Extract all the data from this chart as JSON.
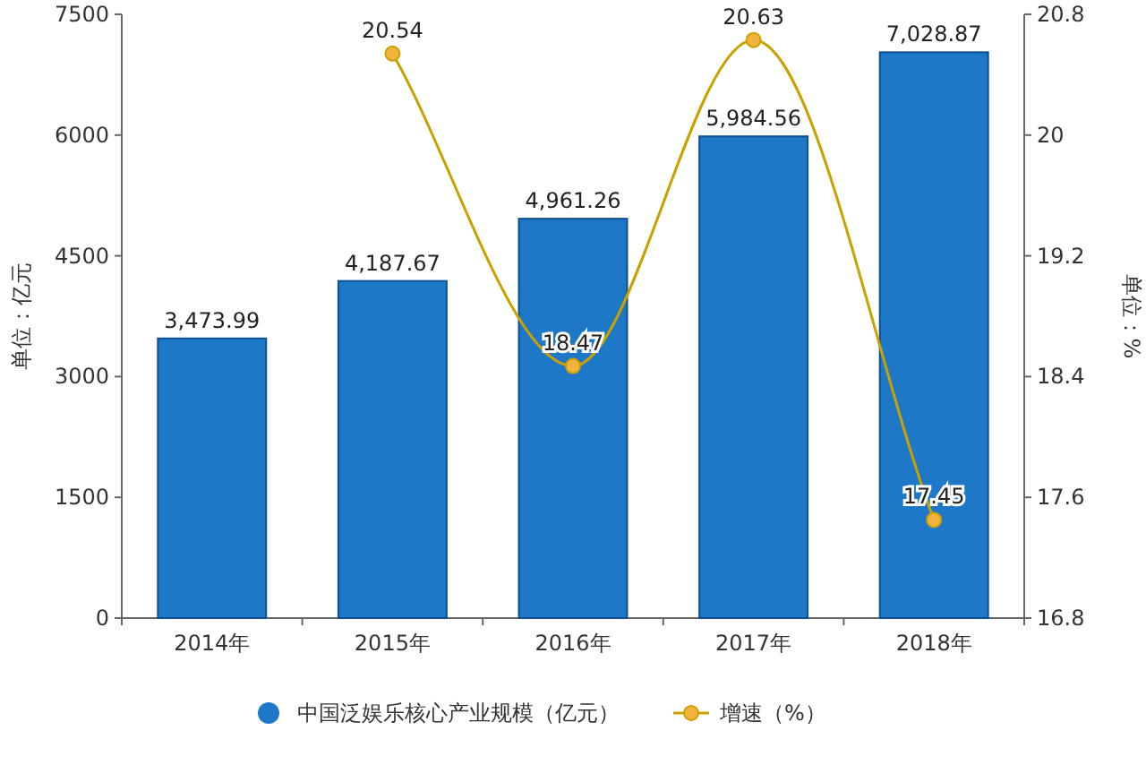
{
  "chart_data": {
    "type": "bar",
    "categories": [
      "2014年",
      "2015年",
      "2016年",
      "2017年",
      "2018年"
    ],
    "ylabel": "单位：亿元",
    "y2label": "单位：%",
    "ylim": [
      0,
      7500
    ],
    "yticks": [
      0,
      1500,
      3000,
      4500,
      6000,
      7500
    ],
    "y2lim": [
      16.8,
      20.8
    ],
    "y2ticks": [
      16.8,
      17.6,
      18.4,
      19.2,
      20,
      20.8
    ],
    "legend": "bottom",
    "grid": false,
    "series": [
      {
        "name": "中国泛娱乐核心产业规模（亿元）",
        "color": "#1e78c8",
        "values": [
          3473.99,
          4187.67,
          4961.26,
          5984.56,
          7028.87
        ],
        "value_labels": [
          "3,473.99",
          "4,187.67",
          "4,961.26",
          "5,984.56",
          "7,028.87"
        ]
      },
      {
        "name": "增速（%）",
        "type": "line",
        "axis": "y2",
        "color": "#c9a100",
        "marker": "circle",
        "values": [
          null,
          20.54,
          18.47,
          20.63,
          17.45
        ],
        "value_labels": [
          null,
          "20.54",
          "18.47",
          "20.63",
          "17.45"
        ]
      }
    ]
  }
}
